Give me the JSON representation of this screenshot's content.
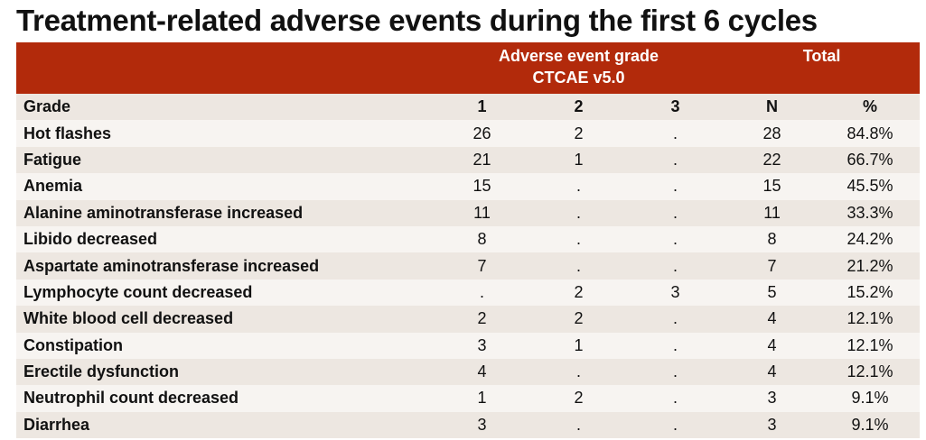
{
  "title": "Treatment-related adverse events during the first 6 cycles",
  "table": {
    "group_header": [
      "Adverse event grade CTCAE v5.0",
      "Total"
    ],
    "header": [
      "Grade",
      "1",
      "2",
      "3",
      "N",
      "%"
    ],
    "rows": [
      [
        "Hot flashes",
        "26",
        "2",
        ".",
        "28",
        "84.8%"
      ],
      [
        "Fatigue",
        "21",
        "1",
        ".",
        "22",
        "66.7%"
      ],
      [
        "Anemia",
        "15",
        ".",
        ".",
        "15",
        "45.5%"
      ],
      [
        "Alanine aminotransferase increased",
        "11",
        ".",
        ".",
        "11",
        "33.3%"
      ],
      [
        "Libido decreased",
        "8",
        ".",
        ".",
        "8",
        "24.2%"
      ],
      [
        "Aspartate aminotransferase increased",
        "7",
        ".",
        ".",
        "7",
        "21.2%"
      ],
      [
        "Lymphocyte count decreased",
        ".",
        "2",
        "3",
        "5",
        "15.2%"
      ],
      [
        "White blood cell decreased",
        "2",
        "2",
        ".",
        "4",
        "12.1%"
      ],
      [
        "Constipation",
        "3",
        "1",
        ".",
        "4",
        "12.1%"
      ],
      [
        "Erectile dysfunction",
        "4",
        ".",
        ".",
        "4",
        "12.1%"
      ],
      [
        "Neutrophil count decreased",
        "1",
        "2",
        ".",
        "3",
        "9.1%"
      ],
      [
        "Diarrhea",
        "3",
        ".",
        ".",
        "3",
        "9.1%"
      ]
    ]
  }
}
